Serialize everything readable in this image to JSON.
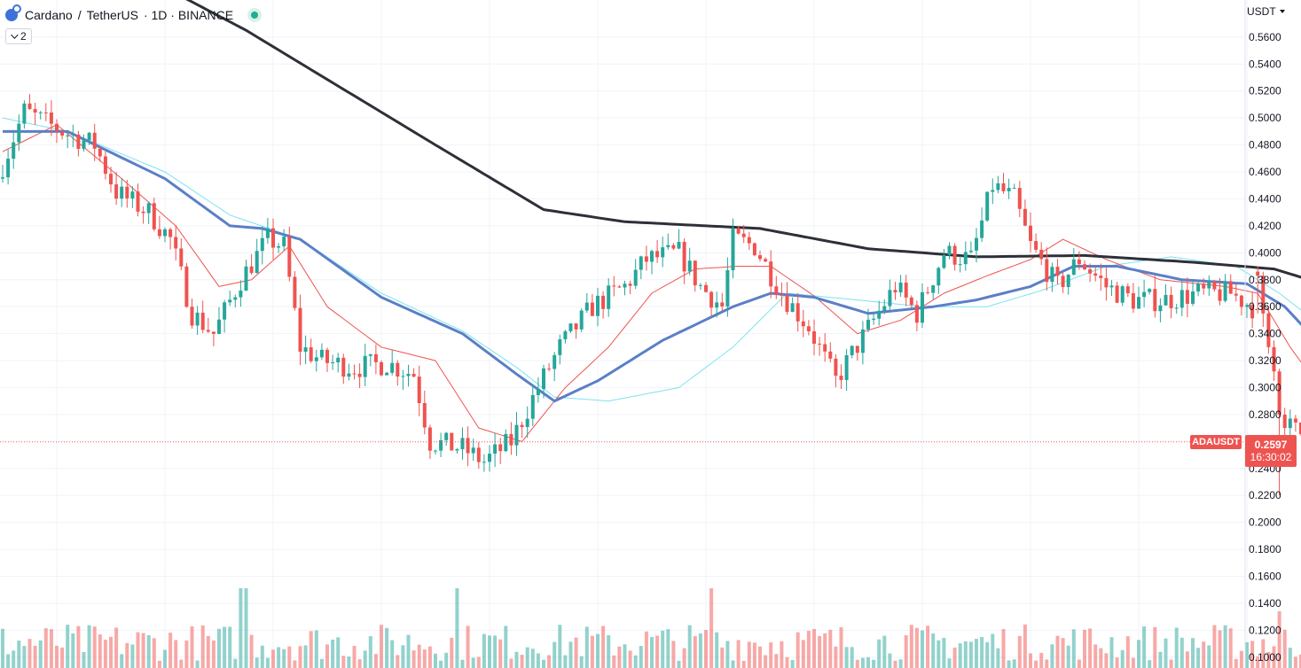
{
  "header": {
    "symbol": "Cardano",
    "separator": "/",
    "quote": "TetherUS",
    "details": "· 1D · BINANCE",
    "indicator_count": "2",
    "currency": "USDT"
  },
  "last_price": {
    "symbol": "ADAUSDT",
    "price": "0.2597",
    "countdown": "16:30:02"
  },
  "colors": {
    "up": "#26a69a",
    "down": "#ef5350",
    "ma_fast": "#ef5350",
    "ma_mid": "#5b7fc7",
    "ma_slow_light": "#7de3ef",
    "ma_long": "#2d3038",
    "grid": "#f0f3fa",
    "axis_text": "#131722"
  },
  "chart_data": {
    "type": "candlestick",
    "yaxis": {
      "ylim": [
        0.092,
        0.5875
      ],
      "ticks": [
        "0.5600",
        "0.5400",
        "0.5200",
        "0.5000",
        "0.4800",
        "0.4600",
        "0.4400",
        "0.4200",
        "0.4000",
        "0.3800",
        "0.3600",
        "0.3400",
        "0.3200",
        "0.3000",
        "0.2800",
        "0.2400",
        "0.2200",
        "0.2000",
        "0.1800",
        "0.1600",
        "0.1400",
        "0.1200",
        "0.1000"
      ]
    },
    "price_anchors": [
      [
        0,
        0.455
      ],
      [
        5,
        0.505
      ],
      [
        12,
        0.49
      ],
      [
        18,
        0.48
      ],
      [
        22,
        0.445
      ],
      [
        28,
        0.43
      ],
      [
        32,
        0.41
      ],
      [
        36,
        0.355
      ],
      [
        40,
        0.34
      ],
      [
        45,
        0.38
      ],
      [
        50,
        0.41
      ],
      [
        53,
        0.405
      ],
      [
        56,
        0.33
      ],
      [
        60,
        0.32
      ],
      [
        66,
        0.315
      ],
      [
        72,
        0.318
      ],
      [
        77,
        0.31
      ],
      [
        80,
        0.26
      ],
      [
        86,
        0.255
      ],
      [
        90,
        0.245
      ],
      [
        95,
        0.26
      ],
      [
        100,
        0.3
      ],
      [
        104,
        0.33
      ],
      [
        110,
        0.36
      ],
      [
        116,
        0.375
      ],
      [
        120,
        0.395
      ],
      [
        126,
        0.4
      ],
      [
        130,
        0.375
      ],
      [
        134,
        0.36
      ],
      [
        136,
        0.41
      ],
      [
        140,
        0.405
      ],
      [
        145,
        0.37
      ],
      [
        150,
        0.345
      ],
      [
        155,
        0.305
      ],
      [
        158,
        0.325
      ],
      [
        162,
        0.35
      ],
      [
        166,
        0.375
      ],
      [
        170,
        0.355
      ],
      [
        175,
        0.4
      ],
      [
        180,
        0.395
      ],
      [
        184,
        0.45
      ],
      [
        188,
        0.44
      ],
      [
        191,
        0.405
      ],
      [
        196,
        0.375
      ],
      [
        200,
        0.395
      ],
      [
        205,
        0.375
      ],
      [
        210,
        0.365
      ],
      [
        216,
        0.365
      ],
      [
        222,
        0.37
      ],
      [
        228,
        0.37
      ],
      [
        232,
        0.36
      ],
      [
        236,
        0.29
      ],
      [
        239,
        0.27
      ],
      [
        244,
        0.26
      ]
    ],
    "ma_long": [
      [
        0,
        0.66
      ],
      [
        45,
        0.565
      ],
      [
        80,
        0.48
      ],
      [
        100,
        0.432
      ],
      [
        115,
        0.423
      ],
      [
        140,
        0.418
      ],
      [
        160,
        0.403
      ],
      [
        180,
        0.397
      ],
      [
        200,
        0.398
      ],
      [
        220,
        0.393
      ],
      [
        235,
        0.388
      ],
      [
        244,
        0.377
      ]
    ],
    "ma_mid": [
      [
        0,
        0.49
      ],
      [
        12,
        0.49
      ],
      [
        30,
        0.455
      ],
      [
        42,
        0.42
      ],
      [
        48,
        0.418
      ],
      [
        55,
        0.41
      ],
      [
        70,
        0.367
      ],
      [
        85,
        0.34
      ],
      [
        95,
        0.31
      ],
      [
        102,
        0.29
      ],
      [
        110,
        0.305
      ],
      [
        122,
        0.335
      ],
      [
        135,
        0.36
      ],
      [
        142,
        0.37
      ],
      [
        150,
        0.367
      ],
      [
        160,
        0.355
      ],
      [
        172,
        0.36
      ],
      [
        180,
        0.365
      ],
      [
        190,
        0.375
      ],
      [
        198,
        0.39
      ],
      [
        206,
        0.39
      ],
      [
        218,
        0.38
      ],
      [
        230,
        0.377
      ],
      [
        237,
        0.36
      ],
      [
        244,
        0.33
      ]
    ],
    "ma_slow_light": [
      [
        0,
        0.5
      ],
      [
        12,
        0.49
      ],
      [
        30,
        0.46
      ],
      [
        42,
        0.428
      ],
      [
        55,
        0.41
      ],
      [
        70,
        0.37
      ],
      [
        85,
        0.342
      ],
      [
        95,
        0.315
      ],
      [
        102,
        0.293
      ],
      [
        112,
        0.29
      ],
      [
        125,
        0.3
      ],
      [
        135,
        0.33
      ],
      [
        145,
        0.37
      ],
      [
        158,
        0.365
      ],
      [
        170,
        0.36
      ],
      [
        182,
        0.36
      ],
      [
        192,
        0.372
      ],
      [
        204,
        0.39
      ],
      [
        216,
        0.397
      ],
      [
        228,
        0.39
      ],
      [
        236,
        0.37
      ],
      [
        244,
        0.345
      ]
    ],
    "ma_fast": [
      [
        0,
        0.475
      ],
      [
        10,
        0.495
      ],
      [
        22,
        0.455
      ],
      [
        32,
        0.42
      ],
      [
        40,
        0.375
      ],
      [
        46,
        0.38
      ],
      [
        53,
        0.405
      ],
      [
        60,
        0.36
      ],
      [
        70,
        0.33
      ],
      [
        80,
        0.32
      ],
      [
        88,
        0.27
      ],
      [
        96,
        0.26
      ],
      [
        104,
        0.3
      ],
      [
        112,
        0.33
      ],
      [
        120,
        0.37
      ],
      [
        128,
        0.388
      ],
      [
        136,
        0.39
      ],
      [
        142,
        0.39
      ],
      [
        150,
        0.368
      ],
      [
        158,
        0.34
      ],
      [
        166,
        0.35
      ],
      [
        174,
        0.37
      ],
      [
        182,
        0.383
      ],
      [
        190,
        0.395
      ],
      [
        196,
        0.41
      ],
      [
        204,
        0.395
      ],
      [
        214,
        0.38
      ],
      [
        226,
        0.375
      ],
      [
        232,
        0.37
      ],
      [
        238,
        0.33
      ],
      [
        244,
        0.297
      ]
    ],
    "special_candles": [
      {
        "i": 232,
        "open": 0.386,
        "close": 0.383,
        "high": 0.39,
        "low": 0.355
      },
      {
        "i": 233,
        "open": 0.383,
        "close": 0.355,
        "high": 0.386,
        "low": 0.345
      },
      {
        "i": 234,
        "open": 0.355,
        "close": 0.33,
        "high": 0.36,
        "low": 0.325
      },
      {
        "i": 235,
        "open": 0.33,
        "close": 0.312,
        "high": 0.335,
        "low": 0.305
      },
      {
        "i": 236,
        "open": 0.312,
        "close": 0.28,
        "high": 0.314,
        "low": 0.22
      },
      {
        "i": 237,
        "open": 0.28,
        "close": 0.27,
        "high": 0.285,
        "low": 0.245
      }
    ],
    "last_close": 0.2597
  }
}
